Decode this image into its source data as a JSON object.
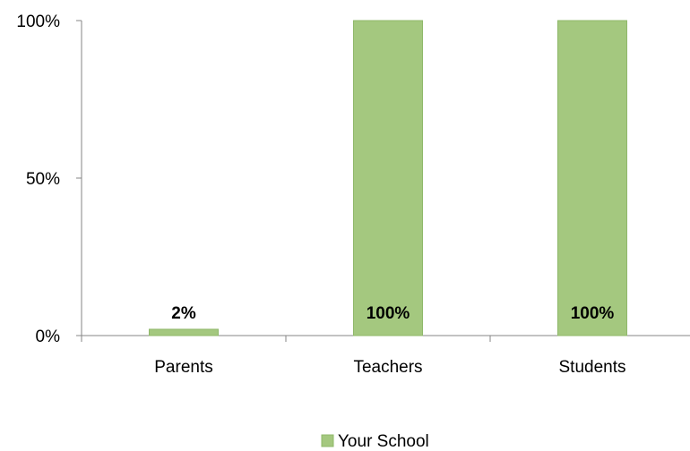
{
  "chart_data": {
    "type": "bar",
    "categories": [
      "Parents",
      "Teachers",
      "Students"
    ],
    "series": [
      {
        "name": "Your School",
        "values": [
          2,
          100,
          100
        ],
        "data_labels": [
          "2%",
          "100%",
          "100%"
        ],
        "color": "#a4c87f",
        "border_color": "#8fb86a"
      }
    ],
    "y_ticks": [
      {
        "value": 100,
        "label": "100%"
      },
      {
        "value": 50,
        "label": "50%"
      },
      {
        "value": 0,
        "label": "0%"
      }
    ],
    "ylim": [
      0,
      100
    ],
    "grid": false,
    "legend_position": "bottom-center",
    "axis_color": "#868686"
  }
}
